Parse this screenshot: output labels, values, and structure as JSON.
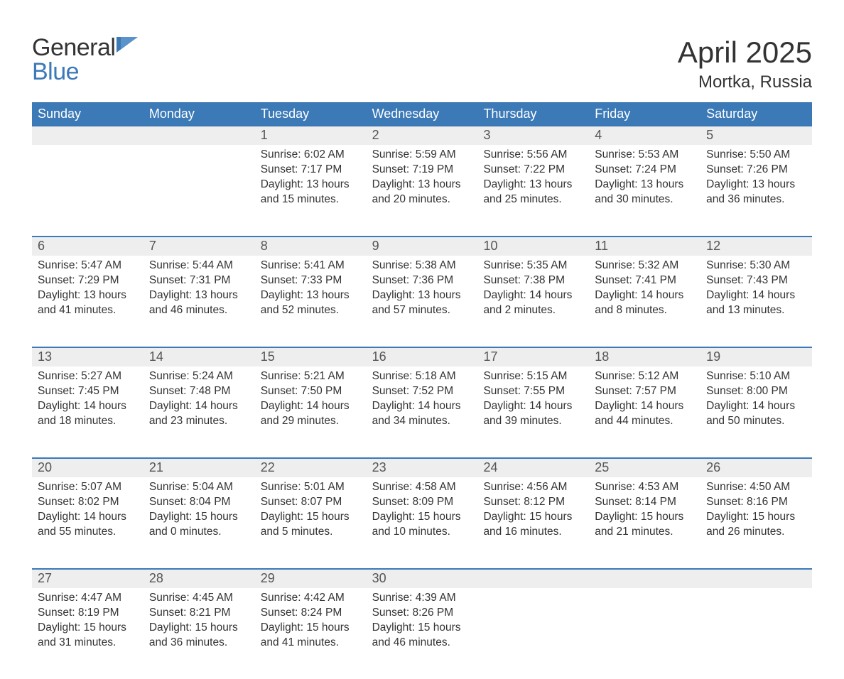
{
  "logo": {
    "line1": "General",
    "line2": "Blue",
    "color_general": "#333333",
    "color_blue": "#3b79b7"
  },
  "title": {
    "month": "April 2025",
    "location": "Mortka, Russia",
    "title_fontsize": 42,
    "location_fontsize": 24
  },
  "colors": {
    "header_bg": "#3b79b7",
    "header_text": "#ffffff",
    "week_border": "#3b79b7",
    "daynum_bg": "#eeeeee",
    "body_text": "#333333",
    "background": "#ffffff"
  },
  "days_of_week": [
    "Sunday",
    "Monday",
    "Tuesday",
    "Wednesday",
    "Thursday",
    "Friday",
    "Saturday"
  ],
  "weeks": [
    [
      {
        "n": "",
        "sunrise": "",
        "sunset": "",
        "daylight": ""
      },
      {
        "n": "",
        "sunrise": "",
        "sunset": "",
        "daylight": ""
      },
      {
        "n": "1",
        "sunrise": "Sunrise: 6:02 AM",
        "sunset": "Sunset: 7:17 PM",
        "daylight": "Daylight: 13 hours and 15 minutes."
      },
      {
        "n": "2",
        "sunrise": "Sunrise: 5:59 AM",
        "sunset": "Sunset: 7:19 PM",
        "daylight": "Daylight: 13 hours and 20 minutes."
      },
      {
        "n": "3",
        "sunrise": "Sunrise: 5:56 AM",
        "sunset": "Sunset: 7:22 PM",
        "daylight": "Daylight: 13 hours and 25 minutes."
      },
      {
        "n": "4",
        "sunrise": "Sunrise: 5:53 AM",
        "sunset": "Sunset: 7:24 PM",
        "daylight": "Daylight: 13 hours and 30 minutes."
      },
      {
        "n": "5",
        "sunrise": "Sunrise: 5:50 AM",
        "sunset": "Sunset: 7:26 PM",
        "daylight": "Daylight: 13 hours and 36 minutes."
      }
    ],
    [
      {
        "n": "6",
        "sunrise": "Sunrise: 5:47 AM",
        "sunset": "Sunset: 7:29 PM",
        "daylight": "Daylight: 13 hours and 41 minutes."
      },
      {
        "n": "7",
        "sunrise": "Sunrise: 5:44 AM",
        "sunset": "Sunset: 7:31 PM",
        "daylight": "Daylight: 13 hours and 46 minutes."
      },
      {
        "n": "8",
        "sunrise": "Sunrise: 5:41 AM",
        "sunset": "Sunset: 7:33 PM",
        "daylight": "Daylight: 13 hours and 52 minutes."
      },
      {
        "n": "9",
        "sunrise": "Sunrise: 5:38 AM",
        "sunset": "Sunset: 7:36 PM",
        "daylight": "Daylight: 13 hours and 57 minutes."
      },
      {
        "n": "10",
        "sunrise": "Sunrise: 5:35 AM",
        "sunset": "Sunset: 7:38 PM",
        "daylight": "Daylight: 14 hours and 2 minutes."
      },
      {
        "n": "11",
        "sunrise": "Sunrise: 5:32 AM",
        "sunset": "Sunset: 7:41 PM",
        "daylight": "Daylight: 14 hours and 8 minutes."
      },
      {
        "n": "12",
        "sunrise": "Sunrise: 5:30 AM",
        "sunset": "Sunset: 7:43 PM",
        "daylight": "Daylight: 14 hours and 13 minutes."
      }
    ],
    [
      {
        "n": "13",
        "sunrise": "Sunrise: 5:27 AM",
        "sunset": "Sunset: 7:45 PM",
        "daylight": "Daylight: 14 hours and 18 minutes."
      },
      {
        "n": "14",
        "sunrise": "Sunrise: 5:24 AM",
        "sunset": "Sunset: 7:48 PM",
        "daylight": "Daylight: 14 hours and 23 minutes."
      },
      {
        "n": "15",
        "sunrise": "Sunrise: 5:21 AM",
        "sunset": "Sunset: 7:50 PM",
        "daylight": "Daylight: 14 hours and 29 minutes."
      },
      {
        "n": "16",
        "sunrise": "Sunrise: 5:18 AM",
        "sunset": "Sunset: 7:52 PM",
        "daylight": "Daylight: 14 hours and 34 minutes."
      },
      {
        "n": "17",
        "sunrise": "Sunrise: 5:15 AM",
        "sunset": "Sunset: 7:55 PM",
        "daylight": "Daylight: 14 hours and 39 minutes."
      },
      {
        "n": "18",
        "sunrise": "Sunrise: 5:12 AM",
        "sunset": "Sunset: 7:57 PM",
        "daylight": "Daylight: 14 hours and 44 minutes."
      },
      {
        "n": "19",
        "sunrise": "Sunrise: 5:10 AM",
        "sunset": "Sunset: 8:00 PM",
        "daylight": "Daylight: 14 hours and 50 minutes."
      }
    ],
    [
      {
        "n": "20",
        "sunrise": "Sunrise: 5:07 AM",
        "sunset": "Sunset: 8:02 PM",
        "daylight": "Daylight: 14 hours and 55 minutes."
      },
      {
        "n": "21",
        "sunrise": "Sunrise: 5:04 AM",
        "sunset": "Sunset: 8:04 PM",
        "daylight": "Daylight: 15 hours and 0 minutes."
      },
      {
        "n": "22",
        "sunrise": "Sunrise: 5:01 AM",
        "sunset": "Sunset: 8:07 PM",
        "daylight": "Daylight: 15 hours and 5 minutes."
      },
      {
        "n": "23",
        "sunrise": "Sunrise: 4:58 AM",
        "sunset": "Sunset: 8:09 PM",
        "daylight": "Daylight: 15 hours and 10 minutes."
      },
      {
        "n": "24",
        "sunrise": "Sunrise: 4:56 AM",
        "sunset": "Sunset: 8:12 PM",
        "daylight": "Daylight: 15 hours and 16 minutes."
      },
      {
        "n": "25",
        "sunrise": "Sunrise: 4:53 AM",
        "sunset": "Sunset: 8:14 PM",
        "daylight": "Daylight: 15 hours and 21 minutes."
      },
      {
        "n": "26",
        "sunrise": "Sunrise: 4:50 AM",
        "sunset": "Sunset: 8:16 PM",
        "daylight": "Daylight: 15 hours and 26 minutes."
      }
    ],
    [
      {
        "n": "27",
        "sunrise": "Sunrise: 4:47 AM",
        "sunset": "Sunset: 8:19 PM",
        "daylight": "Daylight: 15 hours and 31 minutes."
      },
      {
        "n": "28",
        "sunrise": "Sunrise: 4:45 AM",
        "sunset": "Sunset: 8:21 PM",
        "daylight": "Daylight: 15 hours and 36 minutes."
      },
      {
        "n": "29",
        "sunrise": "Sunrise: 4:42 AM",
        "sunset": "Sunset: 8:24 PM",
        "daylight": "Daylight: 15 hours and 41 minutes."
      },
      {
        "n": "30",
        "sunrise": "Sunrise: 4:39 AM",
        "sunset": "Sunset: 8:26 PM",
        "daylight": "Daylight: 15 hours and 46 minutes."
      },
      {
        "n": "",
        "sunrise": "",
        "sunset": "",
        "daylight": ""
      },
      {
        "n": "",
        "sunrise": "",
        "sunset": "",
        "daylight": ""
      },
      {
        "n": "",
        "sunrise": "",
        "sunset": "",
        "daylight": ""
      }
    ]
  ]
}
